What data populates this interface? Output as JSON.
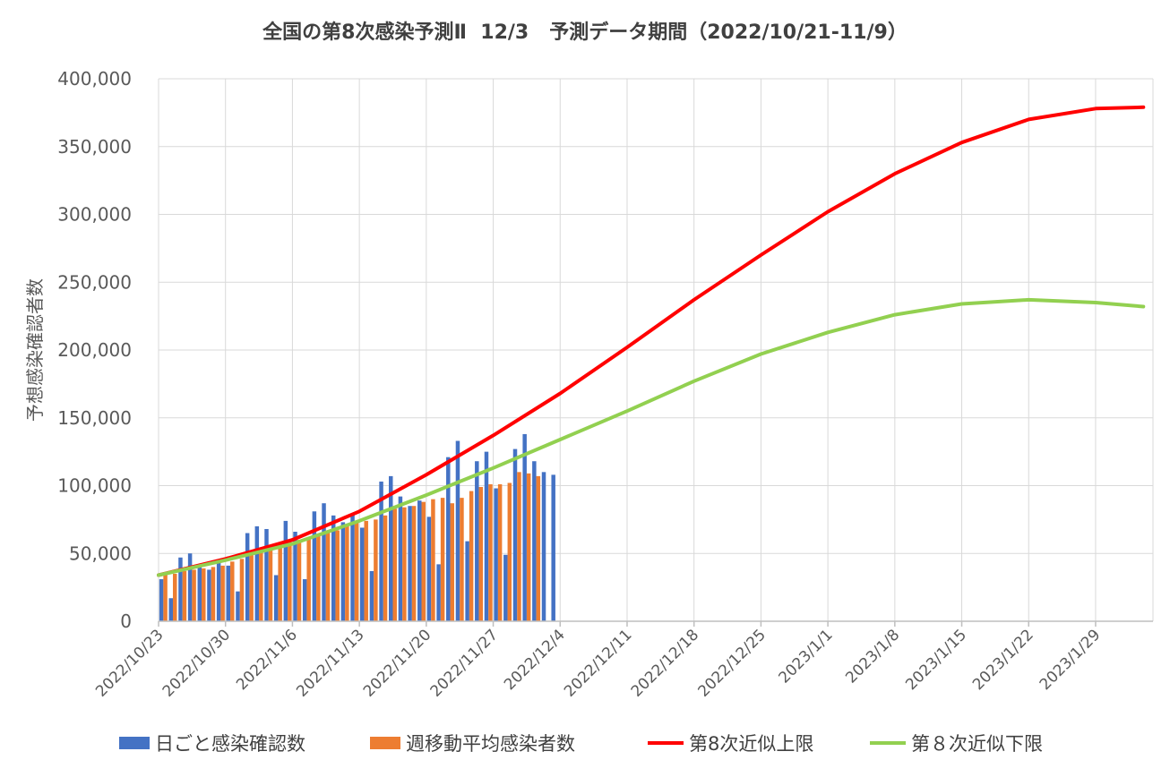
{
  "chart_data": {
    "type": "bar",
    "title": "全国の第8次感染予測Ⅱ  12/3   予測データ期間（2022/10/21-11/9）",
    "ylabel": "予想感染確認者数",
    "xlabel": "",
    "ylim": [
      0,
      400000
    ],
    "yticks": [
      0,
      50000,
      100000,
      150000,
      200000,
      250000,
      300000,
      350000,
      400000
    ],
    "ytick_labels": [
      "0",
      "50,000",
      "100,000",
      "150,000",
      "200,000",
      "250,000",
      "300,000",
      "350,000",
      "400,000"
    ],
    "xlim": [
      "2022/10/23",
      "2023/2/3"
    ],
    "xtick_labels": [
      "2022/10/23",
      "2022/10/30",
      "2022/11/6",
      "2022/11/13",
      "2022/11/20",
      "2022/11/27",
      "2022/12/4",
      "2022/12/11",
      "2022/12/18",
      "2022/12/25",
      "2023/1/1",
      "2023/1/8",
      "2023/1/15",
      "2023/1/22",
      "2023/1/29"
    ],
    "grid": true,
    "legend_position": "bottom",
    "colors": {
      "daily": "#4472C4",
      "weekly_avg": "#ED7D31",
      "upper": "#FF0000",
      "lower": "#92D050",
      "grid": "#D9D9D9",
      "text": "#595959"
    },
    "series": [
      {
        "name": "日ごと感染確認数",
        "kind": "bar",
        "x_start": "2022/10/23",
        "values": [
          31000,
          17000,
          47000,
          50000,
          40000,
          38000,
          43000,
          41000,
          22000,
          65000,
          70000,
          68000,
          34000,
          74000,
          66000,
          31000,
          81000,
          87000,
          78000,
          73000,
          79000,
          69000,
          37000,
          103000,
          107000,
          92000,
          85000,
          89000,
          77000,
          42000,
          121000,
          133000,
          59000,
          118000,
          125000,
          98000,
          49000,
          127000,
          138000,
          118000,
          110000,
          108000
        ]
      },
      {
        "name": "週移動平均感染者数",
        "kind": "bar",
        "x_start": "2022/10/23",
        "values": [
          34000,
          35000,
          37000,
          38000,
          39000,
          40000,
          41000,
          44000,
          46000,
          49000,
          52000,
          55000,
          56000,
          59000,
          60000,
          61000,
          63000,
          66000,
          67000,
          71000,
          73000,
          74000,
          75000,
          78000,
          83000,
          84000,
          85000,
          88000,
          90000,
          91000,
          87000,
          91000,
          96000,
          99000,
          101000,
          101000,
          102000,
          110000,
          109000,
          107000
        ]
      },
      {
        "name": "第8次近似上限",
        "kind": "line",
        "x": [
          "2022/10/23",
          "2022/10/30",
          "2022/11/6",
          "2022/11/13",
          "2022/11/20",
          "2022/11/27",
          "2022/12/4",
          "2022/12/11",
          "2022/12/18",
          "2022/12/25",
          "2023/1/1",
          "2023/1/8",
          "2023/1/15",
          "2023/1/22",
          "2023/1/29",
          "2023/2/3"
        ],
        "values": [
          34000,
          46000,
          60000,
          81000,
          108000,
          137000,
          168000,
          202000,
          237000,
          270000,
          302000,
          330000,
          353000,
          370000,
          378000,
          379000
        ]
      },
      {
        "name": "第８次近似下限",
        "kind": "line",
        "x": [
          "2022/10/23",
          "2022/10/30",
          "2022/11/6",
          "2022/11/13",
          "2022/11/20",
          "2022/11/27",
          "2022/12/4",
          "2022/12/11",
          "2022/12/18",
          "2022/12/25",
          "2023/1/1",
          "2023/1/8",
          "2023/1/15",
          "2023/1/22",
          "2023/1/29",
          "2023/2/3"
        ],
        "values": [
          34000,
          45000,
          57000,
          74000,
          93000,
          113000,
          134000,
          155000,
          177000,
          197000,
          213000,
          226000,
          234000,
          237000,
          235000,
          232000
        ]
      }
    ]
  }
}
